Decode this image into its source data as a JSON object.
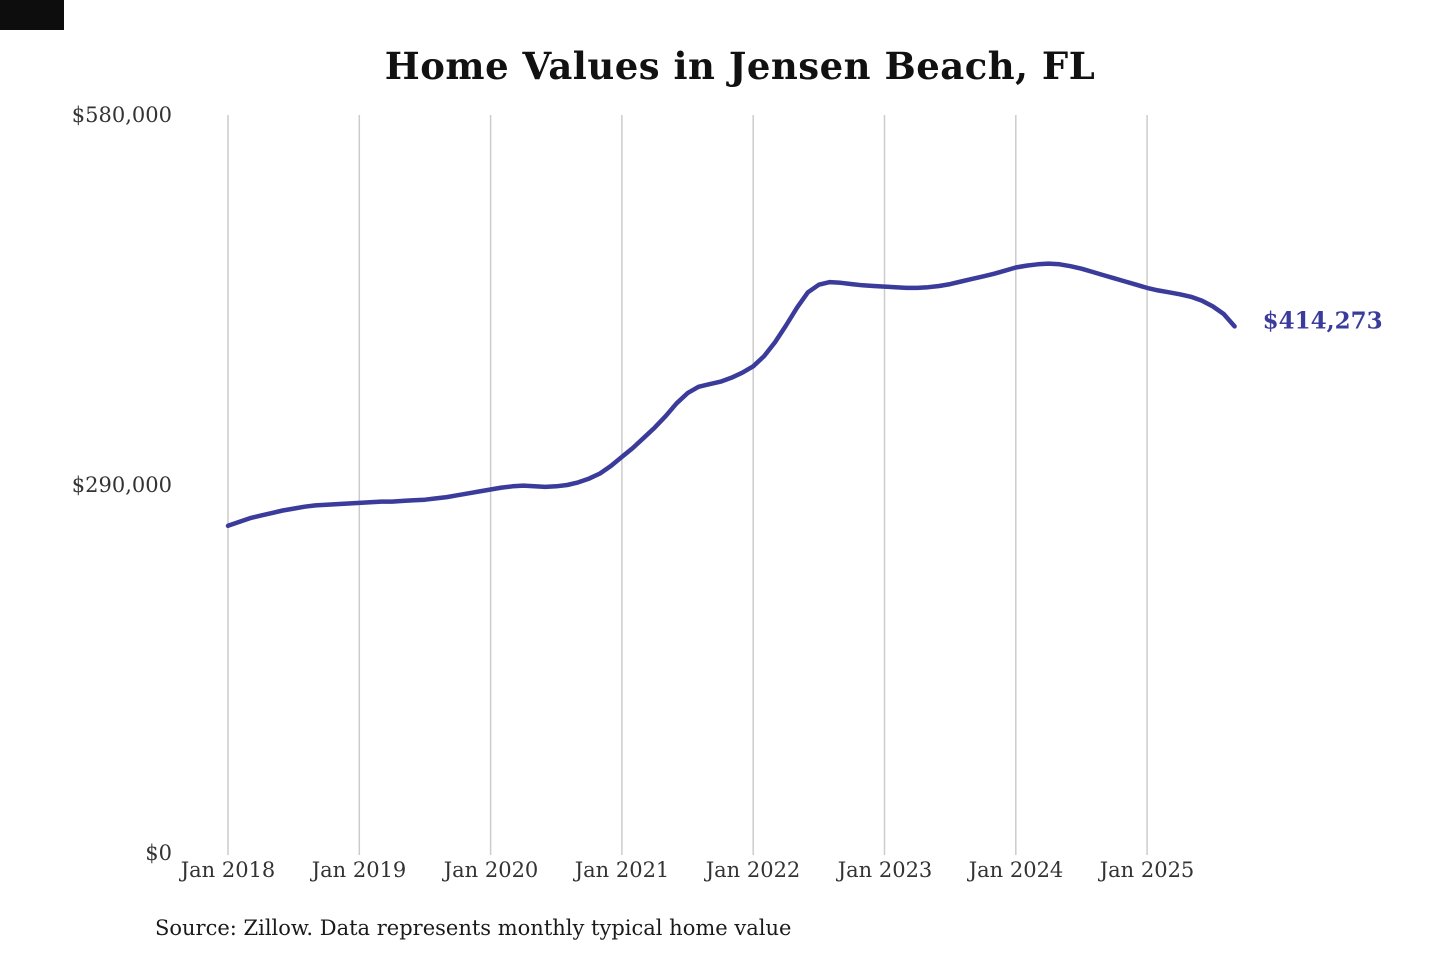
{
  "page": {
    "background": "#ffffff"
  },
  "chart_data": {
    "type": "line",
    "title": "Home Values in Jensen Beach, FL",
    "source": "Source: Zillow. Data represents monthly typical home value",
    "ylabel": "",
    "xlabel": "",
    "ylim": [
      0,
      580000
    ],
    "y_tick_labels": [
      "$580,000",
      "$290,000",
      "$0"
    ],
    "y_tick_values": [
      580000,
      290000,
      0
    ],
    "x_tick_labels": [
      "Jan 2018",
      "Jan 2019",
      "Jan 2020",
      "Jan 2021",
      "Jan 2022",
      "Jan 2023",
      "Jan 2024",
      "Jan 2025"
    ],
    "x_start": "Jan 2018",
    "x_interval": "monthly",
    "grid": "vertical",
    "grid_color": "#cccccc",
    "line_color": "#3b3b9c",
    "legend": "none",
    "latest_label": "$414,273",
    "latest_value": 414273,
    "series": [
      {
        "name": "Typical home value",
        "values": [
          258000,
          261000,
          264000,
          266000,
          268000,
          270000,
          271500,
          273000,
          274000,
          274500,
          275000,
          275500,
          276000,
          276500,
          277000,
          277000,
          277500,
          278000,
          278500,
          279500,
          280500,
          282000,
          283500,
          285000,
          286500,
          288000,
          289000,
          289500,
          289000,
          288500,
          289000,
          290000,
          292000,
          295000,
          299000,
          305000,
          312000,
          319000,
          327000,
          335000,
          344000,
          354000,
          362000,
          367000,
          369000,
          371000,
          374000,
          378000,
          383000,
          391000,
          402000,
          415000,
          429000,
          441000,
          447000,
          449000,
          448500,
          447500,
          446500,
          446000,
          445500,
          445000,
          444500,
          444500,
          445000,
          446000,
          447500,
          449500,
          451500,
          453500,
          455500,
          458000,
          460500,
          462000,
          463000,
          463500,
          463000,
          461500,
          459500,
          457000,
          454500,
          452000,
          449500,
          447000,
          444500,
          442500,
          441000,
          439500,
          437500,
          434500,
          430000,
          424000,
          414273
        ]
      }
    ]
  }
}
